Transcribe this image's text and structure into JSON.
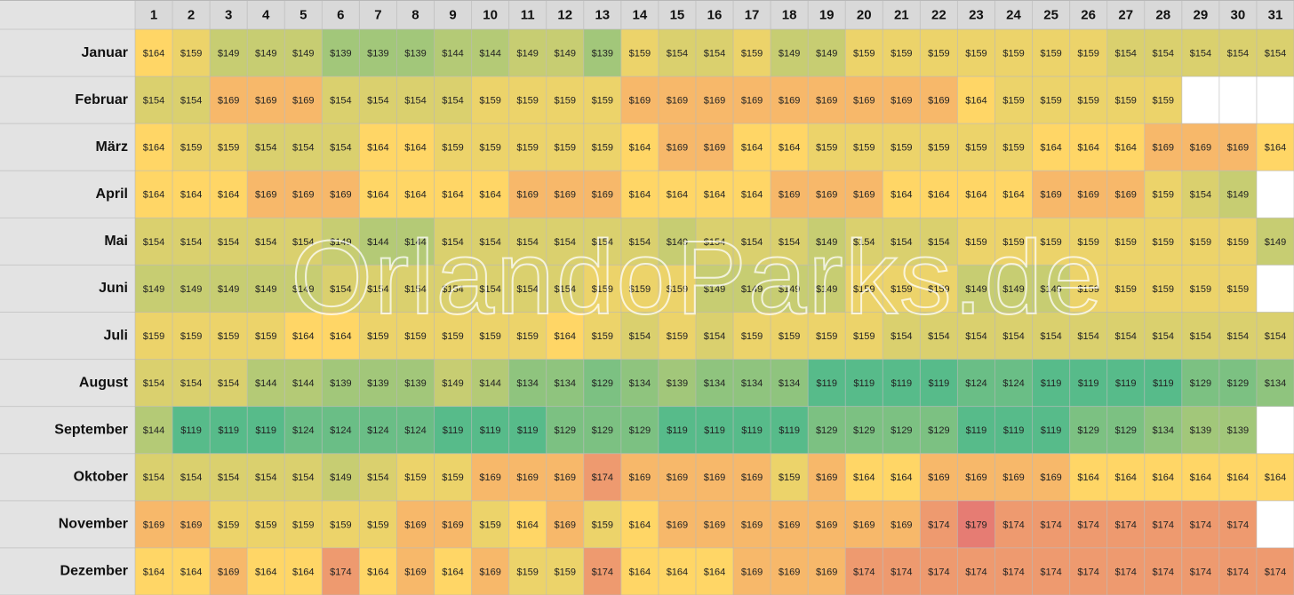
{
  "chart_data": {
    "type": "heatmap",
    "watermark": "OrlandoParks.de",
    "colors": [
      "#57bb8a",
      "#ffd666",
      "#e67c73"
    ],
    "x": [
      1,
      2,
      3,
      4,
      5,
      6,
      7,
      8,
      9,
      10,
      11,
      12,
      13,
      14,
      15,
      16,
      17,
      18,
      19,
      20,
      21,
      22,
      23,
      24,
      25,
      26,
      27,
      28,
      29,
      30,
      31
    ],
    "y": [
      "Januar",
      "Februar",
      "März",
      "April",
      "Mai",
      "Juni",
      "Juli",
      "August",
      "September",
      "Oktober",
      "November",
      "Dezember"
    ],
    "values": [
      [
        164,
        159,
        149,
        149,
        149,
        139,
        139,
        139,
        144,
        144,
        149,
        149,
        139,
        159,
        154,
        154,
        159,
        149,
        149,
        159,
        159,
        159,
        159,
        159,
        159,
        159,
        154,
        154,
        154,
        154,
        154
      ],
      [
        154,
        154,
        169,
        169,
        169,
        154,
        154,
        154,
        154,
        159,
        159,
        159,
        159,
        169,
        169,
        169,
        169,
        169,
        169,
        169,
        169,
        169,
        164,
        159,
        159,
        159,
        159,
        159,
        null,
        null,
        null
      ],
      [
        164,
        159,
        159,
        154,
        154,
        154,
        164,
        164,
        159,
        159,
        159,
        159,
        159,
        164,
        169,
        169,
        164,
        164,
        159,
        159,
        159,
        159,
        159,
        159,
        164,
        164,
        164,
        169,
        169,
        169,
        164
      ],
      [
        164,
        164,
        164,
        169,
        169,
        169,
        164,
        164,
        164,
        164,
        169,
        169,
        169,
        164,
        164,
        164,
        164,
        169,
        169,
        169,
        164,
        164,
        164,
        164,
        169,
        169,
        169,
        159,
        154,
        149,
        null
      ],
      [
        154,
        154,
        154,
        154,
        154,
        149,
        144,
        144,
        154,
        154,
        154,
        154,
        154,
        154,
        149,
        154,
        154,
        154,
        149,
        154,
        154,
        154,
        159,
        159,
        159,
        159,
        159,
        159,
        159,
        159,
        149
      ],
      [
        149,
        149,
        149,
        149,
        149,
        154,
        154,
        154,
        154,
        154,
        154,
        154,
        159,
        159,
        159,
        149,
        149,
        149,
        149,
        159,
        159,
        159,
        149,
        149,
        149,
        159,
        159,
        159,
        159,
        159,
        null
      ],
      [
        159,
        159,
        159,
        159,
        164,
        164,
        159,
        159,
        159,
        159,
        159,
        164,
        159,
        154,
        159,
        154,
        159,
        159,
        159,
        159,
        154,
        154,
        154,
        154,
        154,
        154,
        154,
        154,
        154,
        154,
        154
      ],
      [
        154,
        154,
        154,
        144,
        144,
        139,
        139,
        139,
        149,
        144,
        134,
        134,
        129,
        134,
        139,
        134,
        134,
        134,
        119,
        119,
        119,
        119,
        124,
        124,
        119,
        119,
        119,
        119,
        129,
        129,
        134
      ],
      [
        144,
        119,
        119,
        119,
        124,
        124,
        124,
        124,
        119,
        119,
        119,
        129,
        129,
        129,
        119,
        119,
        119,
        119,
        129,
        129,
        129,
        129,
        119,
        119,
        119,
        129,
        129,
        134,
        139,
        139,
        null
      ],
      [
        154,
        154,
        154,
        154,
        154,
        149,
        154,
        159,
        159,
        169,
        169,
        169,
        174,
        169,
        169,
        169,
        169,
        159,
        169,
        164,
        164,
        169,
        169,
        169,
        169,
        164,
        164,
        164,
        164,
        164,
        164
      ],
      [
        169,
        169,
        159,
        159,
        159,
        159,
        159,
        169,
        169,
        159,
        164,
        169,
        159,
        164,
        169,
        169,
        169,
        169,
        169,
        169,
        169,
        174,
        179,
        174,
        174,
        174,
        174,
        174,
        174,
        174,
        null
      ],
      [
        164,
        164,
        169,
        164,
        164,
        174,
        164,
        169,
        164,
        169,
        159,
        159,
        174,
        164,
        164,
        164,
        169,
        169,
        169,
        174,
        174,
        174,
        174,
        174,
        174,
        174,
        174,
        174,
        174,
        174,
        174
      ]
    ],
    "value_labels": [
      [
        "$164",
        "$159",
        "$149",
        "$149",
        "$149",
        "$139",
        "$139",
        "$139",
        "$144",
        "$144",
        "$149",
        "$149",
        "$139",
        "$159",
        "$154",
        "$154",
        "$159",
        "$149",
        "$149",
        "$159",
        "$159",
        "$159",
        "$159",
        "$159",
        "$159",
        "$159",
        "$154",
        "$154",
        "$154",
        "$154",
        "$154"
      ],
      [
        "$154",
        "$154",
        "$169",
        "$169",
        "$169",
        "$154",
        "$154",
        "$154",
        "$154",
        "$159",
        "$159",
        "$159",
        "$159",
        "$169",
        "$169",
        "$169",
        "$169",
        "$169",
        "$169",
        "$169",
        "$169",
        "$169",
        "$164",
        "$159",
        "$159",
        "$159",
        "$159",
        "$159",
        null,
        null,
        null
      ],
      [
        "$164",
        "$159",
        "$159",
        "$154",
        "$154",
        "$154",
        "$164",
        "$164",
        "$159",
        "$159",
        "$159",
        "$159",
        "$159",
        "$164",
        "$169",
        "$169",
        "$164",
        "$164",
        "$159",
        "$159",
        "$159",
        "$159",
        "$159",
        "$159",
        "$164",
        "$164",
        "$164",
        "$169",
        "$169",
        "$169",
        "$164"
      ],
      [
        "$164",
        "$164",
        "$164",
        "$169",
        "$169",
        "$169",
        "$164",
        "$164",
        "$164",
        "$164",
        "$169",
        "$169",
        "$169",
        "$164",
        "$164",
        "$164",
        "$164",
        "$169",
        "$169",
        "$169",
        "$164",
        "$164",
        "$164",
        "$164",
        "$169",
        "$169",
        "$169",
        "$159",
        "$154",
        "$149",
        null
      ],
      [
        "$154",
        "$154",
        "$154",
        "$154",
        "$154",
        "$149",
        "$144",
        "$144",
        "$154",
        "$154",
        "$154",
        "$154",
        "$154",
        "$154",
        "$149",
        "$154",
        "$154",
        "$154",
        "$149",
        "$154",
        "$154",
        "$154",
        "$159",
        "$159",
        "$159",
        "$159",
        "$159",
        "$159",
        "$159",
        "$159",
        "$149"
      ],
      [
        "$149",
        "$149",
        "$149",
        "$149",
        "$149",
        "$154",
        "$154",
        "$154",
        "$154",
        "$154",
        "$154",
        "$154",
        "$159",
        "$159",
        "$159",
        "$149",
        "$149",
        "$149",
        "$149",
        "$159",
        "$159",
        "$159",
        "$149",
        "$149",
        "$149",
        "$159",
        "$159",
        "$159",
        "$159",
        "$159",
        null
      ],
      [
        "$159",
        "$159",
        "$159",
        "$159",
        "$164",
        "$164",
        "$159",
        "$159",
        "$159",
        "$159",
        "$159",
        "$164",
        "$159",
        "$154",
        "$159",
        "$154",
        "$159",
        "$159",
        "$159",
        "$159",
        "$154",
        "$154",
        "$154",
        "$154",
        "$154",
        "$154",
        "$154",
        "$154",
        "$154",
        "$154",
        "$154"
      ],
      [
        "$154",
        "$154",
        "$154",
        "$144",
        "$144",
        "$139",
        "$139",
        "$139",
        "$149",
        "$144",
        "$134",
        "$134",
        "$129",
        "$134",
        "$139",
        "$134",
        "$134",
        "$134",
        "$119",
        "$119",
        "$119",
        "$119",
        "$124",
        "$124",
        "$119",
        "$119",
        "$119",
        "$119",
        "$129",
        "$129",
        "$134"
      ],
      [
        "$144",
        "$119",
        "$119",
        "$119",
        "$124",
        "$124",
        "$124",
        "$124",
        "$119",
        "$119",
        "$119",
        "$129",
        "$129",
        "$129",
        "$119",
        "$119",
        "$119",
        "$119",
        "$129",
        "$129",
        "$129",
        "$129",
        "$119",
        "$119",
        "$119",
        "$129",
        "$129",
        "$134",
        "$139",
        "$139",
        null
      ],
      [
        "$154",
        "$154",
        "$154",
        "$154",
        "$154",
        "$149",
        "$154",
        "$159",
        "$159",
        "$169",
        "$169",
        "$169",
        "$174",
        "$169",
        "$169",
        "$169",
        "$169",
        "$159",
        "$169",
        "$164",
        "$164",
        "$169",
        "$169",
        "$169",
        "$169",
        "$164",
        "$164",
        "$164",
        "$164",
        "$164",
        "$164"
      ],
      [
        "$169",
        "$169",
        "$159",
        "$159",
        "$159",
        "$159",
        "$159",
        "$169",
        "$169",
        "$159",
        "$164",
        "$169",
        "$159",
        "$164",
        "$169",
        "$169",
        "$169",
        "$169",
        "$169",
        "$169",
        "$169",
        "$174",
        "$179",
        "$174",
        "$174",
        "$174",
        "$174",
        "$174",
        "$174",
        "$174",
        null
      ],
      [
        "$164",
        "$164",
        "$169",
        "$164",
        "$164",
        "$174",
        "$164",
        "$169",
        "$164",
        "$169",
        "$159",
        "$159",
        "$174",
        "$164",
        "$164",
        "$164",
        "$169",
        "$169",
        "$169",
        "$174",
        "$174",
        "$174",
        "$174",
        "$174",
        "$174",
        "$174",
        "$174",
        "$174",
        "$174",
        "$174",
        "$174"
      ]
    ]
  }
}
